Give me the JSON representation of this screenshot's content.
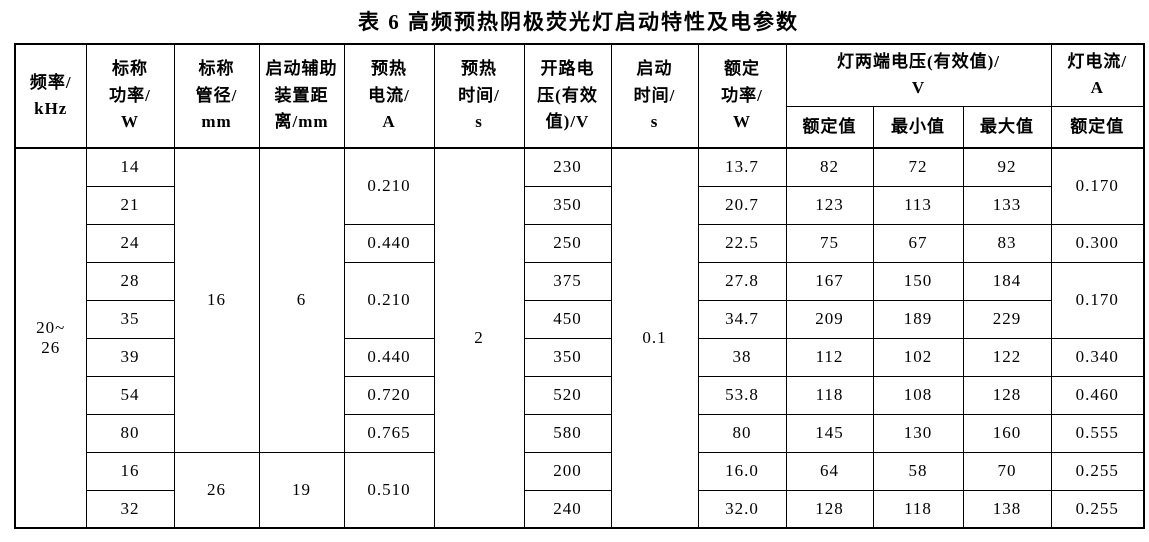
{
  "title": "表 6  高频预热阴极荧光灯启动特性及电参数",
  "colors": {
    "ink": "#000000",
    "paper": "#ffffff"
  },
  "table": {
    "header": {
      "main": [
        {
          "label": [
            "频率/",
            "kHz"
          ],
          "rowspan": 2
        },
        {
          "label": [
            "标称",
            "功率/",
            "W"
          ],
          "rowspan": 2
        },
        {
          "label": [
            "标称",
            "管径/",
            "mm"
          ],
          "rowspan": 2
        },
        {
          "label": [
            "启动辅助",
            "装置距",
            "离/mm"
          ],
          "rowspan": 2
        },
        {
          "label": [
            "预热",
            "电流/",
            "A"
          ],
          "rowspan": 2
        },
        {
          "label": [
            "预热",
            "时间/",
            "s"
          ],
          "rowspan": 2
        },
        {
          "label": [
            "开路电",
            "压(有效",
            "值)/V"
          ],
          "rowspan": 2
        },
        {
          "label": [
            "启动",
            "时间/",
            "s"
          ],
          "rowspan": 2
        },
        {
          "label": [
            "额定",
            "功率/",
            "W"
          ],
          "rowspan": 2
        },
        {
          "label": [
            "灯两端电压(有效值)/",
            "V"
          ],
          "colspan": 3
        },
        {
          "label": [
            "灯电流/",
            "A"
          ]
        }
      ],
      "sub": [
        "额定值",
        "最小值",
        "最大值",
        "额定值"
      ]
    },
    "body": [
      [
        {
          "v": [
            "20~",
            "26"
          ],
          "rs": 10
        },
        {
          "v": "14"
        },
        {
          "v": "16",
          "rs": 8
        },
        {
          "v": "6",
          "rs": 8
        },
        {
          "v": "0.210",
          "rs": 2
        },
        {
          "v": "2",
          "rs": 10
        },
        {
          "v": "230"
        },
        {
          "v": "0.1",
          "rs": 10
        },
        {
          "v": "13.7"
        },
        {
          "v": "82"
        },
        {
          "v": "72"
        },
        {
          "v": "92"
        },
        {
          "v": "0.170",
          "rs": 2
        }
      ],
      [
        {
          "v": "21"
        },
        {
          "v": "350"
        },
        {
          "v": "20.7"
        },
        {
          "v": "123"
        },
        {
          "v": "113"
        },
        {
          "v": "133"
        }
      ],
      [
        {
          "v": "24"
        },
        {
          "v": "0.440"
        },
        {
          "v": "250"
        },
        {
          "v": "22.5"
        },
        {
          "v": "75"
        },
        {
          "v": "67"
        },
        {
          "v": "83"
        },
        {
          "v": "0.300"
        }
      ],
      [
        {
          "v": "28"
        },
        {
          "v": "0.210",
          "rs": 2
        },
        {
          "v": "375"
        },
        {
          "v": "27.8"
        },
        {
          "v": "167"
        },
        {
          "v": "150"
        },
        {
          "v": "184"
        },
        {
          "v": "0.170",
          "rs": 2
        }
      ],
      [
        {
          "v": "35"
        },
        {
          "v": "450"
        },
        {
          "v": "34.7"
        },
        {
          "v": "209"
        },
        {
          "v": "189"
        },
        {
          "v": "229"
        }
      ],
      [
        {
          "v": "39"
        },
        {
          "v": "0.440"
        },
        {
          "v": "350"
        },
        {
          "v": "38"
        },
        {
          "v": "112"
        },
        {
          "v": "102"
        },
        {
          "v": "122"
        },
        {
          "v": "0.340"
        }
      ],
      [
        {
          "v": "54"
        },
        {
          "v": "0.720"
        },
        {
          "v": "520"
        },
        {
          "v": "53.8"
        },
        {
          "v": "118"
        },
        {
          "v": "108"
        },
        {
          "v": "128"
        },
        {
          "v": "0.460"
        }
      ],
      [
        {
          "v": "80"
        },
        {
          "v": "0.765"
        },
        {
          "v": "580"
        },
        {
          "v": "80"
        },
        {
          "v": "145"
        },
        {
          "v": "130"
        },
        {
          "v": "160"
        },
        {
          "v": "0.555"
        }
      ],
      [
        {
          "v": "16"
        },
        {
          "v": "26",
          "rs": 2
        },
        {
          "v": "19",
          "rs": 2
        },
        {
          "v": "0.510",
          "rs": 2
        },
        {
          "v": "200"
        },
        {
          "v": "16.0"
        },
        {
          "v": "64"
        },
        {
          "v": "58"
        },
        {
          "v": "70"
        },
        {
          "v": "0.255"
        }
      ],
      [
        {
          "v": "32"
        },
        {
          "v": "240"
        },
        {
          "v": "32.0"
        },
        {
          "v": "128"
        },
        {
          "v": "118"
        },
        {
          "v": "138"
        },
        {
          "v": "0.255"
        }
      ]
    ]
  }
}
